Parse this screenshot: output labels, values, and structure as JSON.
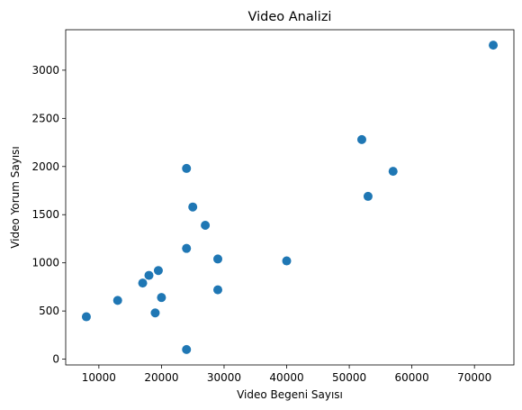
{
  "chart_data": {
    "type": "scatter",
    "title": "Video Analizi",
    "xlabel": "Video Begeni Sayısı",
    "ylabel": "Video Yorum Sayısı",
    "xlim": [
      4700,
      76300
    ],
    "ylim": [
      -60,
      3420
    ],
    "xticks": [
      10000,
      20000,
      30000,
      40000,
      50000,
      60000,
      70000
    ],
    "yticks": [
      0,
      500,
      1000,
      1500,
      2000,
      2500,
      3000
    ],
    "grid": false,
    "marker_color": "#1f77b4",
    "points": [
      {
        "x": 8000,
        "y": 440
      },
      {
        "x": 13000,
        "y": 610
      },
      {
        "x": 17000,
        "y": 790
      },
      {
        "x": 18000,
        "y": 870
      },
      {
        "x": 19000,
        "y": 480
      },
      {
        "x": 19500,
        "y": 920
      },
      {
        "x": 20000,
        "y": 640
      },
      {
        "x": 24000,
        "y": 1980
      },
      {
        "x": 24000,
        "y": 1150
      },
      {
        "x": 24000,
        "y": 100
      },
      {
        "x": 25000,
        "y": 1580
      },
      {
        "x": 27000,
        "y": 1390
      },
      {
        "x": 29000,
        "y": 1040
      },
      {
        "x": 29000,
        "y": 720
      },
      {
        "x": 40000,
        "y": 1020
      },
      {
        "x": 52000,
        "y": 2280
      },
      {
        "x": 53000,
        "y": 1690
      },
      {
        "x": 57000,
        "y": 1950
      },
      {
        "x": 73000,
        "y": 3260
      }
    ]
  }
}
